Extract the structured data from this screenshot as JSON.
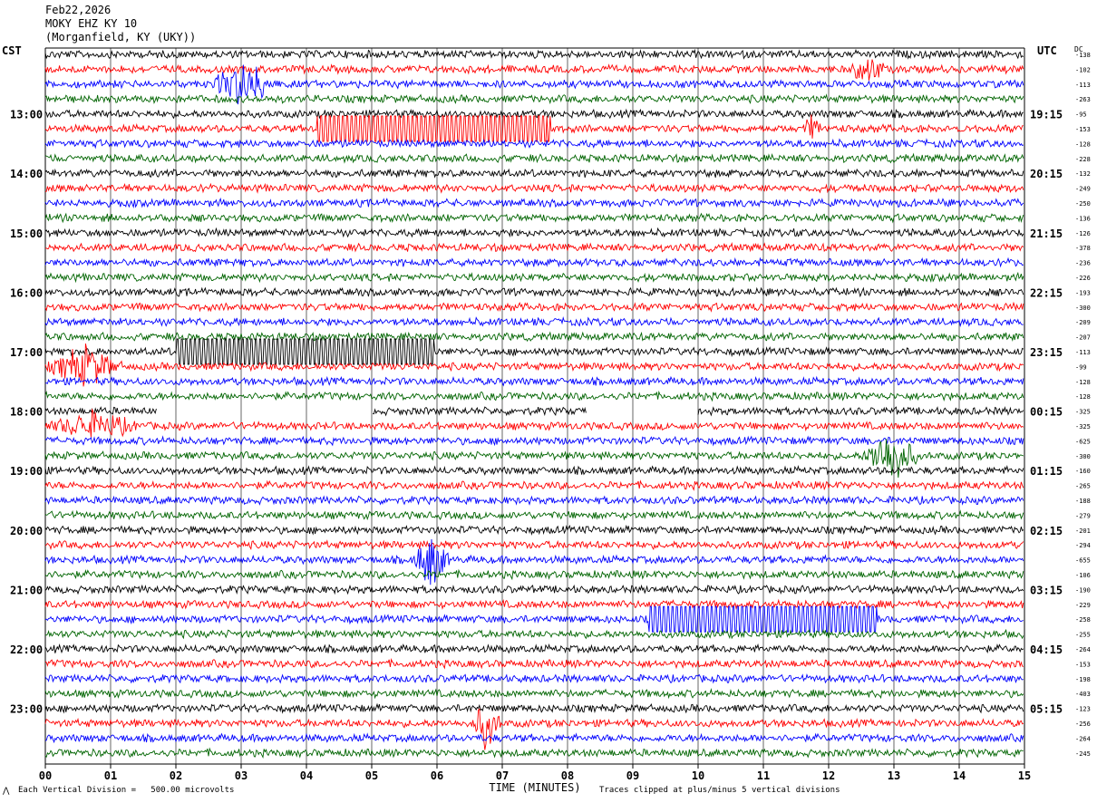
{
  "header": {
    "date": "Feb22,2026",
    "station": "MOKY EHZ KY 10",
    "location": "(Morganfield, KY (UKY))"
  },
  "left_axis_label": "CST",
  "right_axis_label": "UTC",
  "dc_label": "DC",
  "footer": {
    "vertical_division": "Each Vertical Division =   500.00 microvolts",
    "clip_note": "Traces clipped at plus/minus 5 vertical divisions",
    "corner_mark": "⋀"
  },
  "colors": {
    "black": "#000000",
    "red": "#ff0000",
    "blue": "#0000ff",
    "green": "#006400",
    "grid": "#000000"
  },
  "chart_data": {
    "type": "line",
    "title": "",
    "xlabel": "TIME (MINUTES)",
    "ylabel": "",
    "xlim": [
      0,
      15
    ],
    "x_tick_labels": [
      "00",
      "01",
      "02",
      "03",
      "04",
      "05",
      "06",
      "07",
      "08",
      "09",
      "10",
      "11",
      "12",
      "13",
      "14",
      "15"
    ],
    "trace_count": 48,
    "trace_colors": [
      "black",
      "red",
      "blue",
      "green"
    ],
    "hour_labels_left": [
      "13:00",
      "14:00",
      "15:00",
      "16:00",
      "17:00",
      "18:00",
      "19:00",
      "20:00",
      "21:00",
      "22:00",
      "23:00"
    ],
    "hour_labels_right": [
      "19:15",
      "20:15",
      "21:15",
      "22:15",
      "23:15",
      "00:15",
      "01:15",
      "02:15",
      "03:15",
      "04:15",
      "05:15"
    ],
    "dc_offsets": [
      "-138",
      "-102",
      "-113",
      "-263",
      "-95",
      "-153",
      "-128",
      "-228",
      "-132",
      "-249",
      "-250",
      "-136",
      "-126",
      "-378",
      "-236",
      "-226",
      "-193",
      "-300",
      "-209",
      "-207",
      "-113",
      "-99",
      "-128",
      "-128",
      "-325",
      "-325",
      "-625",
      "-300",
      "-160",
      "-265",
      "-188",
      "-279",
      "-201",
      "-294",
      "-655",
      "-106",
      "-190",
      "-229",
      "-258",
      "-255",
      "-264",
      "-153",
      "-198",
      "-403",
      "-123",
      "-256",
      "-264",
      "-245"
    ],
    "events": [
      {
        "trace": 2,
        "start_min": 2.5,
        "end_min": 3.6,
        "type": "burst",
        "amp": 2.2
      },
      {
        "trace": 1,
        "start_min": 12.3,
        "end_min": 12.9,
        "type": "burst",
        "amp": 1.5
      },
      {
        "trace": 5,
        "start_min": 4.15,
        "end_min": 7.75,
        "type": "clipped"
      },
      {
        "trace": 5,
        "start_min": 11.6,
        "end_min": 11.9,
        "type": "burst",
        "amp": 1.2
      },
      {
        "trace": 20,
        "start_min": 2.0,
        "end_min": 5.95,
        "type": "clipped"
      },
      {
        "trace": 21,
        "start_min": 0.0,
        "end_min": 1.2,
        "type": "burst",
        "amp": 2.0
      },
      {
        "trace": 24,
        "start_min": 1.7,
        "end_min": 5.0,
        "type": "gap"
      },
      {
        "trace": 24,
        "start_min": 8.3,
        "end_min": 10.0,
        "type": "gap"
      },
      {
        "trace": 25,
        "start_min": 0.0,
        "end_min": 1.5,
        "type": "burst",
        "amp": 1.3
      },
      {
        "trace": 27,
        "start_min": 12.5,
        "end_min": 13.4,
        "type": "burst",
        "amp": 3.0
      },
      {
        "trace": 34,
        "start_min": 5.6,
        "end_min": 6.2,
        "type": "burst",
        "amp": 3.0
      },
      {
        "trace": 38,
        "start_min": 9.25,
        "end_min": 12.75,
        "type": "clipped"
      },
      {
        "trace": 45,
        "start_min": 6.5,
        "end_min": 7.0,
        "type": "burst",
        "amp": 2.5
      }
    ]
  }
}
